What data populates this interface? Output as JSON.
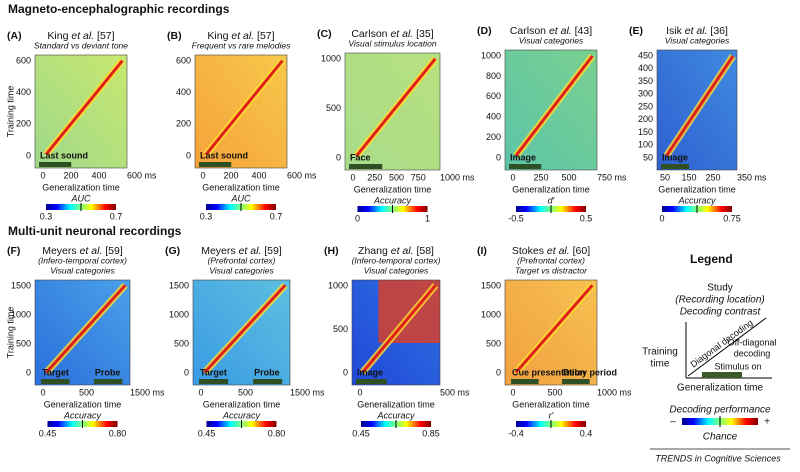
{
  "sections": [
    {
      "title": "Magneto-encephalographic recordings",
      "panels": [
        {
          "letter": "(A)",
          "author": "King",
          "etal": "et al.",
          "ref": "[57]",
          "subtitles": [
            "Standard vs deviant tone"
          ],
          "y_label": "Training time",
          "x_label": "Generalization time",
          "y_ticks": [
            "600",
            "400",
            "200",
            "0"
          ],
          "x_ticks": [
            "0",
            "200",
            "400",
            "600 ms"
          ],
          "insets": [
            "Last sound"
          ],
          "colorbar": {
            "label": "AUC",
            "min": "0.3",
            "max": "0.7"
          }
        },
        {
          "letter": "(B)",
          "author": "King",
          "etal": "et al.",
          "ref": "[57]",
          "subtitles": [
            "Frequent vs rare melodies"
          ],
          "x_label": "Generalization time",
          "y_ticks": [
            "600",
            "400",
            "200",
            "0"
          ],
          "x_ticks": [
            "0",
            "200",
            "400",
            "600 ms"
          ],
          "insets": [
            "Last sound"
          ],
          "colorbar": {
            "label": "AUC",
            "min": "0.3",
            "max": "0.7"
          }
        },
        {
          "letter": "(C)",
          "author": "Carlson",
          "etal": "et al.",
          "ref": "[35]",
          "subtitles": [
            "Visual stimulus location"
          ],
          "x_label": "Generalization time",
          "y_ticks": [
            "1000",
            "500",
            "0"
          ],
          "x_ticks": [
            "0",
            "250",
            "500",
            "750",
            "1000 ms"
          ],
          "insets": [
            "Face"
          ],
          "colorbar": {
            "label": "Accuracy",
            "min": "0",
            "max": "1"
          }
        },
        {
          "letter": "(D)",
          "author": "Carlson",
          "etal": "et al.",
          "ref": "[43]",
          "subtitles": [
            "Visual categories"
          ],
          "x_label": "Generalization time",
          "y_ticks": [
            "1000",
            "800",
            "600",
            "400",
            "200",
            "0"
          ],
          "x_ticks": [
            "0",
            "250",
            "500",
            "750 ms"
          ],
          "insets": [
            "Image"
          ],
          "colorbar": {
            "label": "d′",
            "min": "-0.5",
            "max": "0.5"
          }
        },
        {
          "letter": "(E)",
          "author": "Isik",
          "etal": "et al.",
          "ref": "[36]",
          "subtitles": [
            "Visual categories"
          ],
          "x_label": "Generalization time",
          "y_ticks": [
            "450",
            "400",
            "350",
            "300",
            "250",
            "200",
            "150",
            "100",
            "50"
          ],
          "x_ticks": [
            "50",
            "150",
            "250",
            "350 ms"
          ],
          "insets": [
            "Image"
          ],
          "colorbar": {
            "label": "Accuracy",
            "min": "0",
            "max": "0.75"
          }
        }
      ]
    },
    {
      "title": "Multi-unit neuronal recordings",
      "panels": [
        {
          "letter": "(F)",
          "author": "Meyers",
          "etal": "et al.",
          "ref": "[59]",
          "subtitles": [
            "(Infero-temporal cortex)",
            "Visual categories"
          ],
          "y_label": "Training time",
          "x_label": "Generalization time",
          "y_ticks": [
            "1500",
            "1000",
            "500",
            "0"
          ],
          "x_ticks": [
            "0",
            "500",
            "1500 ms"
          ],
          "insets": [
            "Target",
            "Probe"
          ],
          "colorbar": {
            "label": "Accuracy",
            "min": "0.45",
            "max": "0.80"
          }
        },
        {
          "letter": "(G)",
          "author": "Meyers",
          "etal": "et al.",
          "ref": "[59]",
          "subtitles": [
            "(Prefrontal cortex)",
            "Visual categories"
          ],
          "x_label": "Generalization time",
          "y_ticks": [
            "1500",
            "1000",
            "500",
            "0"
          ],
          "x_ticks": [
            "0",
            "500",
            "1500 ms"
          ],
          "insets": [
            "Target",
            "Probe"
          ],
          "colorbar": {
            "label": "Accuracy",
            "min": "0.45",
            "max": "0.80"
          }
        },
        {
          "letter": "(H)",
          "author": "Zhang",
          "etal": "et al.",
          "ref": "[58]",
          "subtitles": [
            "(Infero-temporal cortex)",
            "Visual categories"
          ],
          "x_label": "Generalization time",
          "y_ticks": [
            "1000",
            "500",
            "0"
          ],
          "x_ticks": [
            "0",
            "500 ms"
          ],
          "insets": [
            "Image"
          ],
          "colorbar": {
            "label": "Accuracy",
            "min": "0.45",
            "max": "0.85"
          }
        },
        {
          "letter": "(I)",
          "author": "Stokes",
          "etal": "et al.",
          "ref": "[60]",
          "subtitles": [
            "(Prefrontal cortex)",
            "Target vs distractor"
          ],
          "x_label": "Generalization time",
          "y_ticks": [
            "1500",
            "1000",
            "500",
            "0"
          ],
          "x_ticks": [
            "0",
            "500",
            "1000 ms"
          ],
          "insets": [
            "Cue presentation",
            "Delay period"
          ],
          "colorbar": {
            "label": "r′",
            "min": "-0.4",
            "max": "0.4"
          }
        }
      ]
    }
  ],
  "legend": {
    "title": "Legend",
    "study": "Study",
    "location": "(Recording location)",
    "contrast": "Decoding contrast",
    "y_label": [
      "Training",
      "time"
    ],
    "diagonal": "Diagonal decoding",
    "off_diagonal": [
      "Off-diagonal",
      "decoding"
    ],
    "stimulus": "Stimulus on",
    "x_label": "Generalization time",
    "performance": "Decoding performance",
    "minus": "–",
    "plus": "+",
    "chance": "Chance"
  },
  "footer": "TRENDS in Cognitive Sciences"
}
